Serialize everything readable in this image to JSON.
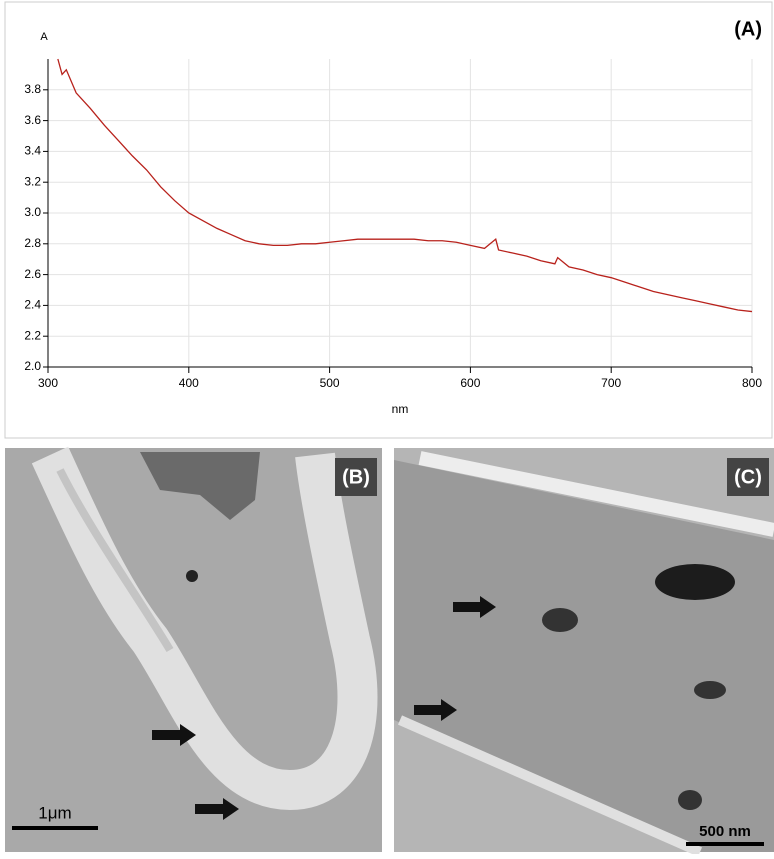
{
  "chart_data": {
    "type": "line",
    "panel_label": "(A)",
    "y_label": "A",
    "x_label": "nm",
    "color": "#b8221c",
    "grid": true,
    "xlim": [
      300,
      800
    ],
    "ylim": [
      2.0,
      4.0
    ],
    "xticks": [
      300,
      400,
      500,
      600,
      700,
      800
    ],
    "yticks": [
      {
        "value": 2,
        "label": "2.0"
      },
      {
        "value": 2.2,
        "label": "2.2"
      },
      {
        "value": 2.4,
        "label": "2.4"
      },
      {
        "value": 2.6,
        "label": "2.6"
      },
      {
        "value": 2.8,
        "label": "2.8"
      },
      {
        "value": 3,
        "label": "3.0"
      },
      {
        "value": 3.2,
        "label": "3.2"
      },
      {
        "value": 3.4,
        "label": "3.4"
      },
      {
        "value": 3.6,
        "label": "3.6"
      },
      {
        "value": 3.8,
        "label": "3.8"
      }
    ],
    "x": [
      307,
      310,
      313,
      320,
      330,
      340,
      350,
      360,
      370,
      380,
      390,
      400,
      410,
      420,
      430,
      440,
      450,
      460,
      470,
      480,
      490,
      500,
      510,
      520,
      530,
      540,
      550,
      560,
      570,
      580,
      590,
      600,
      610,
      618,
      620,
      630,
      640,
      650,
      660,
      662,
      670,
      680,
      690,
      700,
      710,
      720,
      730,
      740,
      750,
      760,
      770,
      780,
      790,
      800
    ],
    "values": [
      4.0,
      3.9,
      3.93,
      3.78,
      3.68,
      3.57,
      3.47,
      3.37,
      3.28,
      3.17,
      3.08,
      3.0,
      2.95,
      2.9,
      2.86,
      2.82,
      2.8,
      2.79,
      2.79,
      2.8,
      2.8,
      2.81,
      2.82,
      2.83,
      2.83,
      2.83,
      2.83,
      2.83,
      2.82,
      2.82,
      2.81,
      2.79,
      2.77,
      2.83,
      2.76,
      2.74,
      2.72,
      2.69,
      2.67,
      2.71,
      2.65,
      2.63,
      2.6,
      2.58,
      2.55,
      2.52,
      2.49,
      2.47,
      2.45,
      2.43,
      2.41,
      2.39,
      2.37,
      2.36
    ]
  },
  "images": [
    {
      "label": "(B)",
      "scale": "1μm"
    },
    {
      "label": "(C)",
      "scale": "500 nm"
    }
  ]
}
